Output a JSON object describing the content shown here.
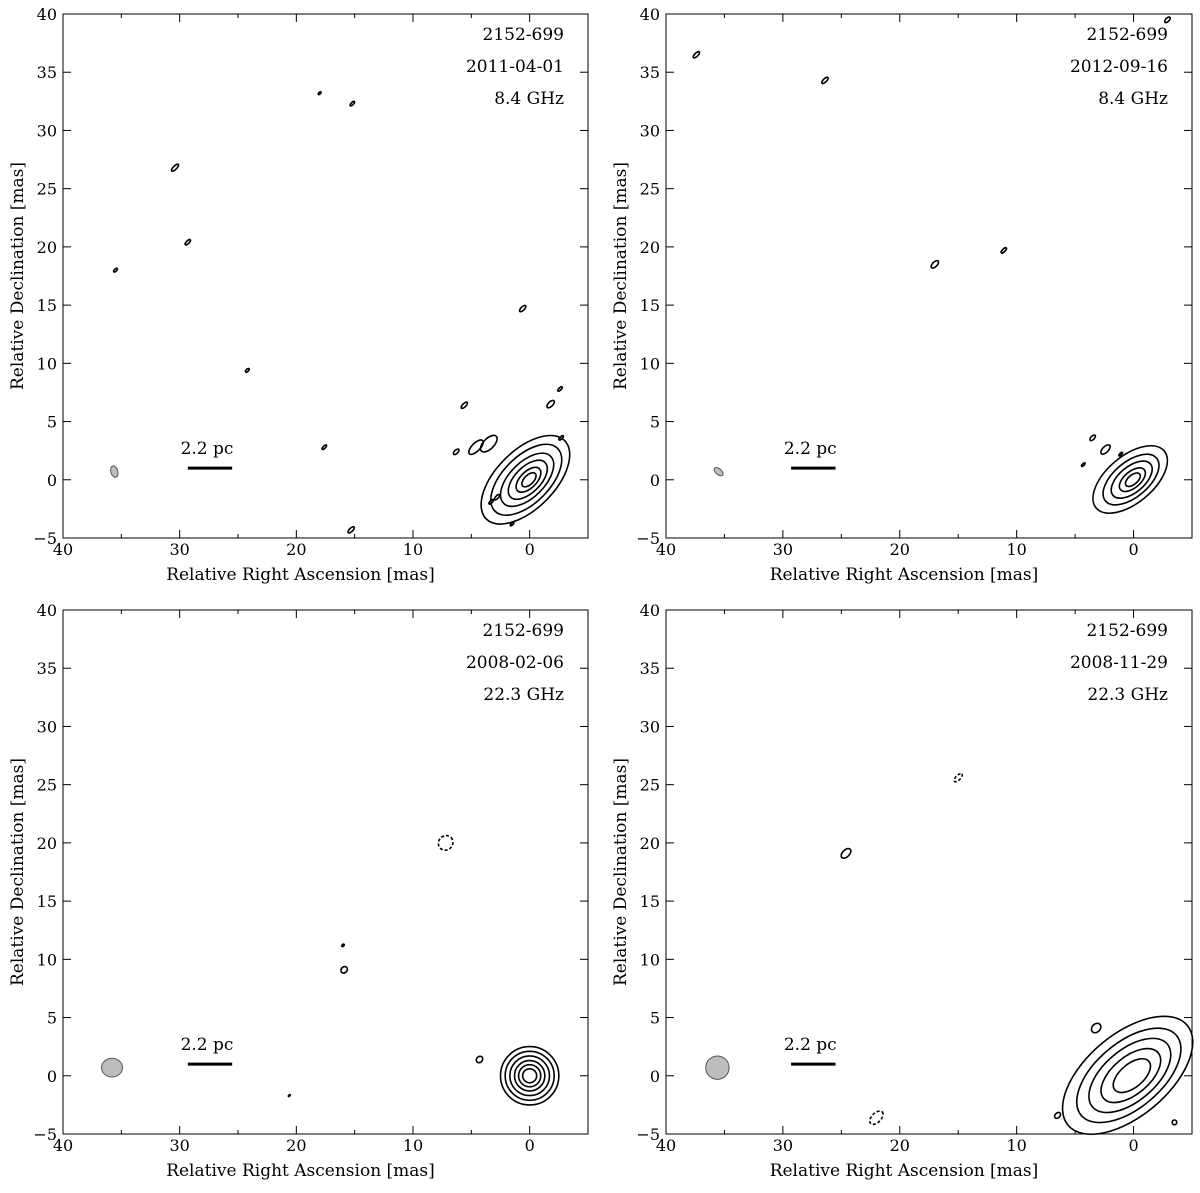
{
  "chart_data": [
    {
      "type": "contour",
      "source": "2152-699",
      "date": "2011-04-01",
      "frequency": "8.4 GHz",
      "scale_label": "2.2 pc",
      "xlabel": "Relative Right Ascension [mas]",
      "ylabel": "Relative Declination [mas]",
      "xlim": [
        40,
        -5
      ],
      "ylim": [
        -5,
        40
      ],
      "xticks": [
        40,
        30,
        20,
        10,
        0
      ],
      "yticks": [
        -5,
        0,
        5,
        10,
        15,
        20,
        25,
        30,
        35,
        40
      ],
      "beam": {
        "x": 35.6,
        "y": 0.7,
        "a": 0.3,
        "b": 0.5,
        "angle": -15
      },
      "core": {
        "x": 0,
        "y": 0,
        "levels": [
          2.5,
          2.0,
          1.5,
          1.1,
          0.7,
          0.4
        ],
        "angle": -45
      },
      "components": [
        {
          "x": 30.4,
          "y": 26.8,
          "a": 0.4,
          "b": 0.15,
          "negative": false
        },
        {
          "x": 29.3,
          "y": 20.4,
          "a": 0.3,
          "b": 0.12,
          "negative": false
        },
        {
          "x": 35.5,
          "y": 18.0,
          "a": 0.2,
          "b": 0.1,
          "negative": false
        },
        {
          "x": 24.2,
          "y": 9.4,
          "a": 0.2,
          "b": 0.1,
          "negative": false
        },
        {
          "x": 18.0,
          "y": 33.2,
          "a": 0.15,
          "b": 0.08,
          "negative": false
        },
        {
          "x": 15.2,
          "y": 32.3,
          "a": 0.25,
          "b": 0.1,
          "negative": false
        },
        {
          "x": 17.6,
          "y": 2.8,
          "a": 0.25,
          "b": 0.1,
          "negative": false
        },
        {
          "x": 15.3,
          "y": -4.3,
          "a": 0.35,
          "b": 0.15,
          "negative": false
        },
        {
          "x": 5.6,
          "y": 6.4,
          "a": 0.35,
          "b": 0.15,
          "negative": false
        },
        {
          "x": 6.3,
          "y": 2.4,
          "a": 0.3,
          "b": 0.15,
          "negative": false
        },
        {
          "x": 4.6,
          "y": 2.8,
          "a": 0.8,
          "b": 0.35,
          "negative": false
        },
        {
          "x": 3.5,
          "y": 3.1,
          "a": 0.9,
          "b": 0.45,
          "negative": false
        },
        {
          "x": 2.8,
          "y": -1.5,
          "a": 0.3,
          "b": 0.12,
          "negative": false
        },
        {
          "x": 3.3,
          "y": -1.9,
          "a": 0.25,
          "b": 0.1,
          "negative": false
        },
        {
          "x": 0.6,
          "y": 14.7,
          "a": 0.35,
          "b": 0.15,
          "negative": false
        },
        {
          "x": -1.8,
          "y": 6.5,
          "a": 0.4,
          "b": 0.2,
          "negative": false
        },
        {
          "x": -2.6,
          "y": 7.8,
          "a": 0.25,
          "b": 0.1,
          "negative": false
        },
        {
          "x": -2.7,
          "y": 3.6,
          "a": 0.25,
          "b": 0.1,
          "negative": false
        },
        {
          "x": 1.5,
          "y": -3.8,
          "a": 0.2,
          "b": 0.08,
          "negative": false
        }
      ]
    },
    {
      "type": "contour",
      "source": "2152-699",
      "date": "2012-09-16",
      "frequency": "8.4 GHz",
      "scale_label": "2.2 pc",
      "xlabel": "Relative Right Ascension [mas]",
      "ylabel": "Relative Declination [mas]",
      "xlim": [
        40,
        -5
      ],
      "ylim": [
        -5,
        40
      ],
      "xticks": [
        40,
        30,
        20,
        10,
        0
      ],
      "yticks": [
        -5,
        0,
        5,
        10,
        15,
        20,
        25,
        30,
        35,
        40
      ],
      "beam": {
        "x": 35.5,
        "y": 0.7,
        "a": 0.25,
        "b": 0.45,
        "angle": -50
      },
      "core": {
        "x": 0,
        "y": 0,
        "levels": [
          2.0,
          1.5,
          1.1,
          0.7,
          0.4
        ],
        "angle": -40
      },
      "components": [
        {
          "x": 37.4,
          "y": 36.5,
          "a": 0.35,
          "b": 0.15,
          "negative": false
        },
        {
          "x": 26.4,
          "y": 34.3,
          "a": 0.35,
          "b": 0.15,
          "negative": false
        },
        {
          "x": 17.0,
          "y": 18.5,
          "a": 0.4,
          "b": 0.2,
          "negative": false
        },
        {
          "x": 11.1,
          "y": 19.7,
          "a": 0.3,
          "b": 0.12,
          "negative": false
        },
        {
          "x": -2.9,
          "y": 39.5,
          "a": 0.3,
          "b": 0.15,
          "negative": false
        },
        {
          "x": 4.3,
          "y": 1.3,
          "a": 0.2,
          "b": 0.08,
          "negative": false
        },
        {
          "x": 3.5,
          "y": 3.6,
          "a": 0.3,
          "b": 0.15,
          "negative": false
        },
        {
          "x": 2.4,
          "y": 2.6,
          "a": 0.5,
          "b": 0.25,
          "negative": false
        },
        {
          "x": 1.1,
          "y": 2.2,
          "a": 0.2,
          "b": 0.08,
          "negative": false
        }
      ]
    },
    {
      "type": "contour",
      "source": "2152-699",
      "date": "2008-02-06",
      "frequency": "22.3 GHz",
      "scale_label": "2.2 pc",
      "xlabel": "Relative Right Ascension [mas]",
      "ylabel": "Relative Declination [mas]",
      "xlim": [
        40,
        -5
      ],
      "ylim": [
        -5,
        40
      ],
      "xticks": [
        40,
        30,
        20,
        10,
        0
      ],
      "yticks": [
        -5,
        0,
        5,
        10,
        15,
        20,
        25,
        30,
        35,
        40
      ],
      "beam": {
        "x": 35.8,
        "y": 0.7,
        "a": 0.9,
        "b": 0.8,
        "angle": 0
      },
      "core": {
        "x": 0,
        "y": 0,
        "levels": [
          2.5,
          2.1,
          1.7,
          1.3,
          0.95,
          0.6
        ],
        "angle": 0
      },
      "components": [
        {
          "x": 7.2,
          "y": 20.0,
          "a": 0.65,
          "b": 0.6,
          "negative": true
        },
        {
          "x": 16.0,
          "y": 11.2,
          "a": 0.12,
          "b": 0.08,
          "negative": false
        },
        {
          "x": 15.9,
          "y": 9.1,
          "a": 0.3,
          "b": 0.25,
          "negative": false
        },
        {
          "x": 4.3,
          "y": 1.4,
          "a": 0.3,
          "b": 0.25,
          "negative": false
        },
        {
          "x": 20.6,
          "y": -1.7,
          "a": 0.1,
          "b": 0.05,
          "negative": false
        }
      ]
    },
    {
      "type": "contour",
      "source": "2152-699",
      "date": "2008-11-29",
      "frequency": "22.3 GHz",
      "scale_label": "2.2 pc",
      "xlabel": "Relative Right Ascension [mas]",
      "ylabel": "Relative Declination [mas]",
      "xlim": [
        40,
        -5
      ],
      "ylim": [
        -5,
        40
      ],
      "xticks": [
        40,
        30,
        20,
        10,
        0
      ],
      "yticks": [
        -5,
        0,
        5,
        10,
        15,
        20,
        25,
        30,
        35,
        40
      ],
      "beam": {
        "x": 35.6,
        "y": 0.7,
        "a": 1.0,
        "b": 1.0,
        "angle": 0
      },
      "core": {
        "x": 0,
        "y": 0,
        "levels": [
          1.0,
          1.6,
          2.2,
          2.8,
          3.5
        ],
        "angle": -40
      },
      "components": [
        {
          "x": 24.6,
          "y": 19.1,
          "a": 0.5,
          "b": 0.3,
          "negative": false
        },
        {
          "x": 15.0,
          "y": 25.6,
          "a": 0.45,
          "b": 0.2,
          "negative": true
        },
        {
          "x": 22.0,
          "y": -3.6,
          "a": 0.7,
          "b": 0.4,
          "negative": true
        },
        {
          "x": 6.5,
          "y": -3.4,
          "a": 0.3,
          "b": 0.2,
          "negative": false
        },
        {
          "x": 3.2,
          "y": 4.1,
          "a": 0.45,
          "b": 0.35,
          "negative": false
        },
        {
          "x": -3.5,
          "y": -4.0,
          "a": 0.2,
          "b": 0.2,
          "negative": false
        }
      ]
    }
  ]
}
